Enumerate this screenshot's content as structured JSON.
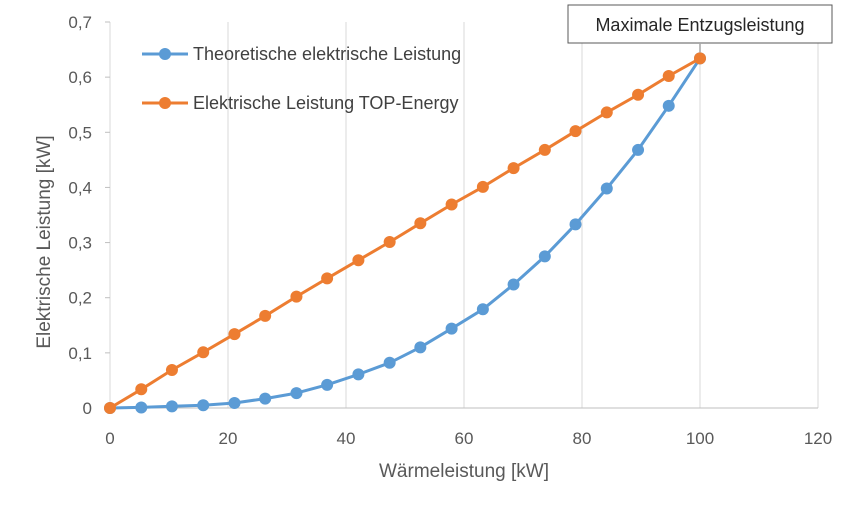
{
  "chart_data": {
    "type": "line",
    "xlabel": "Wärmeleistung [kW]",
    "ylabel": "Elektrische Leistung [kW]",
    "xlim": [
      0,
      120
    ],
    "ylim": [
      0,
      0.7
    ],
    "x_ticks": [
      0,
      20,
      40,
      60,
      80,
      100,
      120
    ],
    "x_tick_labels": [
      "0",
      "20",
      "40",
      "60",
      "80",
      "100",
      "120"
    ],
    "y_ticks": [
      0,
      0.1,
      0.2,
      0.3,
      0.4,
      0.5,
      0.6,
      0.7
    ],
    "y_tick_labels": [
      "0",
      "0,1",
      "0,2",
      "0,3",
      "0,4",
      "0,5",
      "0,6",
      "0,7"
    ],
    "grid": "vertical",
    "legend_position": "top-left inside",
    "annotation": "Maximale Entzugsleistung",
    "series": [
      {
        "name": "Theoretische elektrische Leistung",
        "color": "#5B9BD5",
        "x": [
          0,
          5.3,
          10.5,
          15.8,
          21.1,
          26.3,
          31.6,
          36.8,
          42.1,
          47.4,
          52.6,
          57.9,
          63.2,
          68.4,
          73.7,
          78.9,
          84.2,
          89.5,
          94.7,
          100
        ],
        "y": [
          0,
          0.001,
          0.003,
          0.005,
          0.009,
          0.017,
          0.027,
          0.042,
          0.061,
          0.082,
          0.11,
          0.144,
          0.179,
          0.224,
          0.275,
          0.333,
          0.398,
          0.468,
          0.548,
          0.634
        ]
      },
      {
        "name": "Elektrische Leistung TOP-Energy",
        "color": "#ED7D31",
        "x": [
          0,
          5.3,
          10.5,
          15.8,
          21.1,
          26.3,
          31.6,
          36.8,
          42.1,
          47.4,
          52.6,
          57.9,
          63.2,
          68.4,
          73.7,
          78.9,
          84.2,
          89.5,
          94.7,
          100
        ],
        "y": [
          0,
          0.034,
          0.069,
          0.101,
          0.134,
          0.167,
          0.202,
          0.235,
          0.268,
          0.301,
          0.335,
          0.369,
          0.401,
          0.435,
          0.468,
          0.502,
          0.536,
          0.568,
          0.602,
          0.634
        ]
      }
    ]
  }
}
